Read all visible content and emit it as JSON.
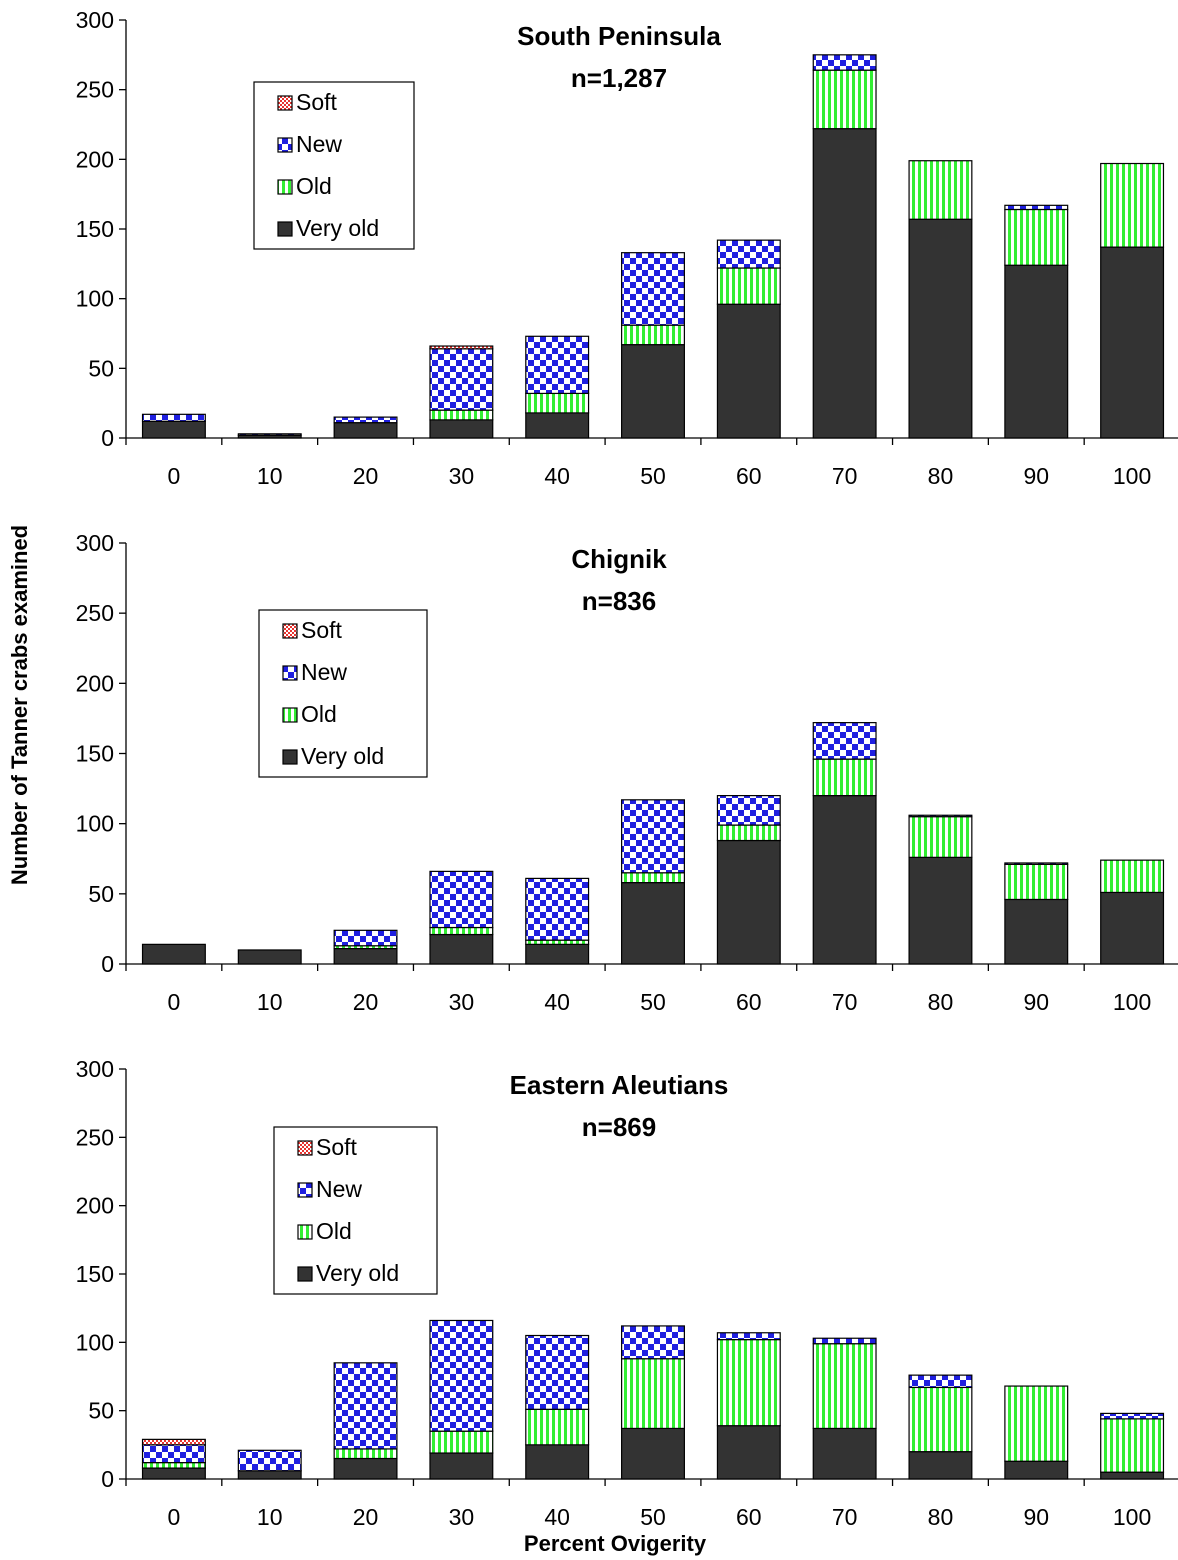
{
  "y_axis_title": "Number of Tanner crabs examined",
  "x_axis_title": "Percent Ovigerity",
  "colors": {
    "Soft": "#e8332f",
    "New": "#1f1fe0",
    "Old": "#33ee33",
    "Very old": "#333333"
  },
  "chart_data": [
    {
      "type": "bar",
      "stacked": true,
      "title": "South Peninsula",
      "subtitle": "n=1,287",
      "ylim": [
        0,
        300
      ],
      "yticks": [
        0,
        50,
        100,
        150,
        200,
        250,
        300
      ],
      "categories": [
        "0",
        "10",
        "20",
        "30",
        "40",
        "50",
        "60",
        "70",
        "80",
        "90",
        "100"
      ],
      "legend": [
        "Soft",
        "New",
        "Old",
        "Very old"
      ],
      "series": [
        {
          "name": "Very old",
          "values": [
            12,
            2,
            11,
            13,
            18,
            67,
            96,
            222,
            157,
            124,
            137
          ]
        },
        {
          "name": "Old",
          "values": [
            0,
            0,
            0,
            7,
            14,
            14,
            26,
            42,
            42,
            40,
            60
          ]
        },
        {
          "name": "New",
          "values": [
            5,
            1,
            4,
            44,
            41,
            52,
            20,
            11,
            0,
            3,
            0
          ]
        },
        {
          "name": "Soft",
          "values": [
            0,
            0,
            0,
            2,
            0,
            0,
            0,
            0,
            0,
            0,
            0
          ]
        }
      ]
    },
    {
      "type": "bar",
      "stacked": true,
      "title": "Chignik",
      "subtitle": "n=836",
      "ylim": [
        0,
        300
      ],
      "yticks": [
        0,
        50,
        100,
        150,
        200,
        250,
        300
      ],
      "categories": [
        "0",
        "10",
        "20",
        "30",
        "40",
        "50",
        "60",
        "70",
        "80",
        "90",
        "100"
      ],
      "legend": [
        "Soft",
        "New",
        "Old",
        "Very old"
      ],
      "series": [
        {
          "name": "Very old",
          "values": [
            14,
            10,
            11,
            21,
            14,
            58,
            88,
            120,
            76,
            46,
            51
          ]
        },
        {
          "name": "Old",
          "values": [
            0,
            0,
            2,
            5,
            3,
            7,
            11,
            26,
            29,
            25,
            23
          ]
        },
        {
          "name": "New",
          "values": [
            0,
            0,
            11,
            40,
            44,
            52,
            21,
            26,
            1,
            1,
            0
          ]
        },
        {
          "name": "Soft",
          "values": [
            0,
            0,
            0,
            0,
            0,
            0,
            0,
            0,
            0,
            0,
            0
          ]
        }
      ]
    },
    {
      "type": "bar",
      "stacked": true,
      "title": "Eastern Aleutians",
      "subtitle": "n=869",
      "ylim": [
        0,
        300
      ],
      "yticks": [
        0,
        50,
        100,
        150,
        200,
        250,
        300
      ],
      "categories": [
        "0",
        "10",
        "20",
        "30",
        "40",
        "50",
        "60",
        "70",
        "80",
        "90",
        "100"
      ],
      "legend": [
        "Soft",
        "New",
        "Old",
        "Very old"
      ],
      "series": [
        {
          "name": "Very old",
          "values": [
            8,
            6,
            15,
            19,
            25,
            37,
            39,
            37,
            20,
            13,
            5
          ]
        },
        {
          "name": "Old",
          "values": [
            4,
            0,
            7,
            16,
            26,
            51,
            63,
            62,
            47,
            55,
            39
          ]
        },
        {
          "name": "New",
          "values": [
            13,
            15,
            63,
            81,
            54,
            24,
            5,
            4,
            9,
            0,
            4
          ]
        },
        {
          "name": "Soft",
          "values": [
            4,
            0,
            0,
            0,
            0,
            0,
            0,
            0,
            0,
            0,
            0
          ]
        }
      ]
    }
  ]
}
